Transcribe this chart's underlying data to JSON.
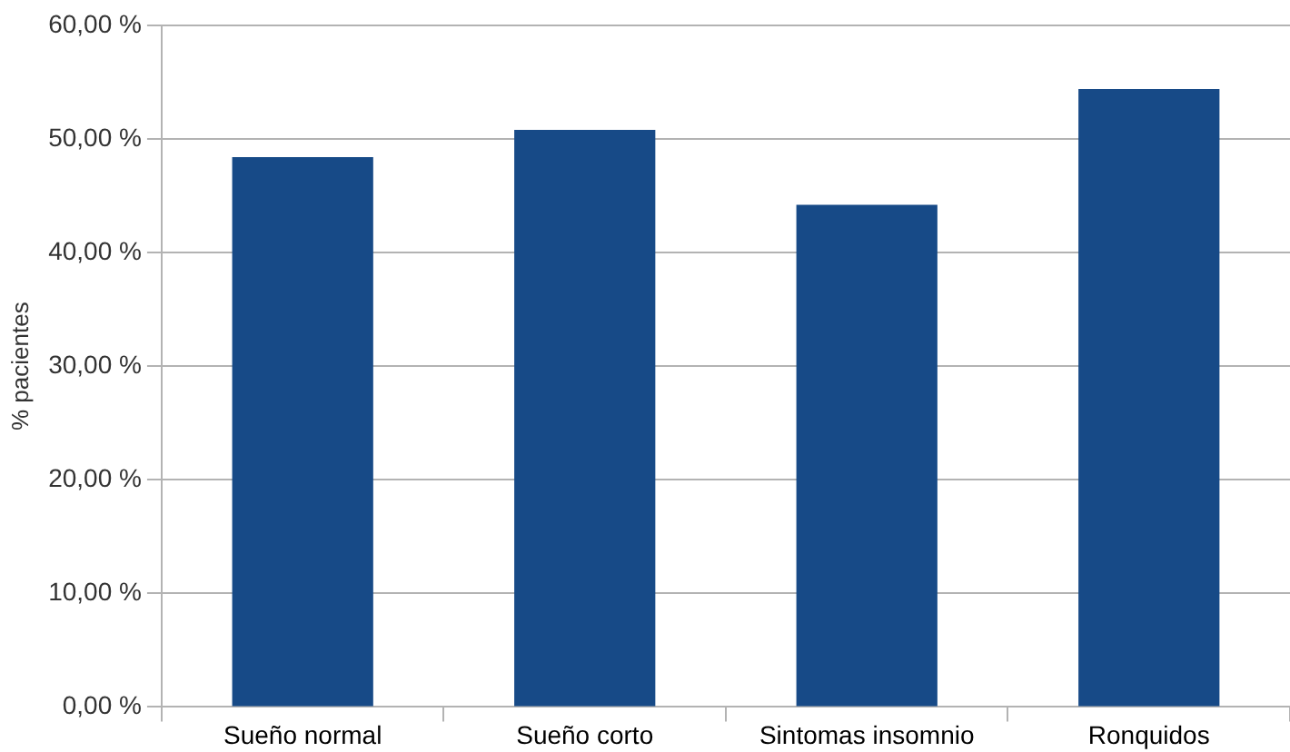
{
  "chart_data": {
    "type": "bar",
    "ylabel": "% pacientes",
    "categories": [
      "Sueño normal",
      "Sueño corto",
      "Sintomas insomnio",
      "Ronquidos"
    ],
    "values": [
      48.4,
      50.8,
      44.2,
      54.4
    ],
    "color": "#174a87",
    "ylim": [
      0,
      60
    ],
    "yticks": [
      {
        "value": 0,
        "label": "0,00 %"
      },
      {
        "value": 10,
        "label": "10,00 %"
      },
      {
        "value": 20,
        "label": "20,00 %"
      },
      {
        "value": 30,
        "label": "30,00 %"
      },
      {
        "value": 40,
        "label": "40,00 %"
      },
      {
        "value": 50,
        "label": "50,00 %"
      },
      {
        "value": 60,
        "label": "60,00 %"
      }
    ],
    "grid": "y",
    "legend": false
  }
}
